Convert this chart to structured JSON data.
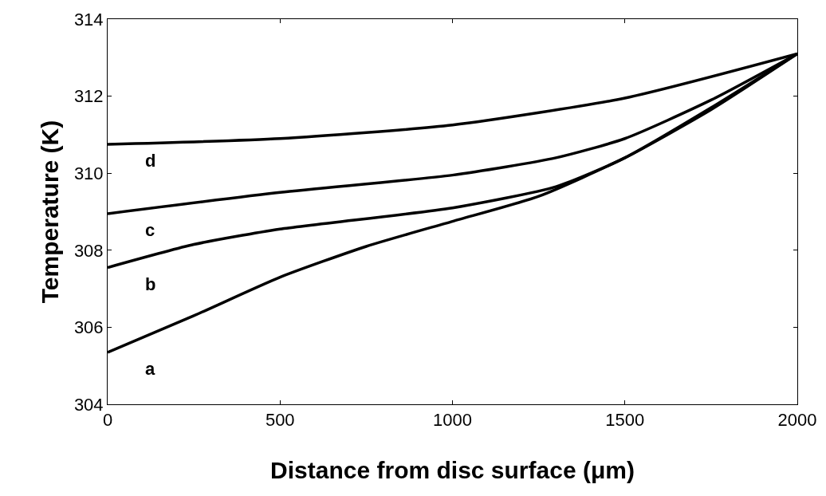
{
  "chart_data": {
    "type": "line",
    "xlabel": "Distance from disc surface (μm)",
    "ylabel": "Temperature (K)",
    "xlim": [
      0,
      2000
    ],
    "xticks": [
      0,
      500,
      1000,
      1500,
      2000
    ],
    "ylim": [
      304,
      314
    ],
    "yticks": [
      304,
      306,
      308,
      310,
      312,
      314
    ],
    "legend": false,
    "marker": "none",
    "line_style": "solid",
    "series": [
      {
        "name": "a",
        "color": "#000000",
        "x": [
          0,
          250,
          500,
          750,
          1000,
          1250,
          1500,
          1750,
          2000
        ],
        "values": [
          305.35,
          306.3,
          307.3,
          308.1,
          308.75,
          309.4,
          310.4,
          311.65,
          313.1
        ]
      },
      {
        "name": "b",
        "color": "#000000",
        "x": [
          0,
          250,
          500,
          1000,
          1300,
          1500,
          1750,
          2000
        ],
        "values": [
          307.55,
          308.15,
          308.55,
          309.1,
          309.65,
          310.4,
          311.7,
          313.1
        ]
      },
      {
        "name": "c",
        "color": "#000000",
        "x": [
          0,
          500,
          1000,
          1300,
          1500,
          1750,
          2000
        ],
        "values": [
          308.95,
          309.5,
          309.95,
          310.4,
          310.9,
          311.9,
          313.1
        ]
      },
      {
        "name": "d",
        "color": "#000000",
        "x": [
          0,
          500,
          1000,
          1500,
          2000
        ],
        "values": [
          310.75,
          310.9,
          311.25,
          311.95,
          313.1
        ]
      }
    ]
  }
}
